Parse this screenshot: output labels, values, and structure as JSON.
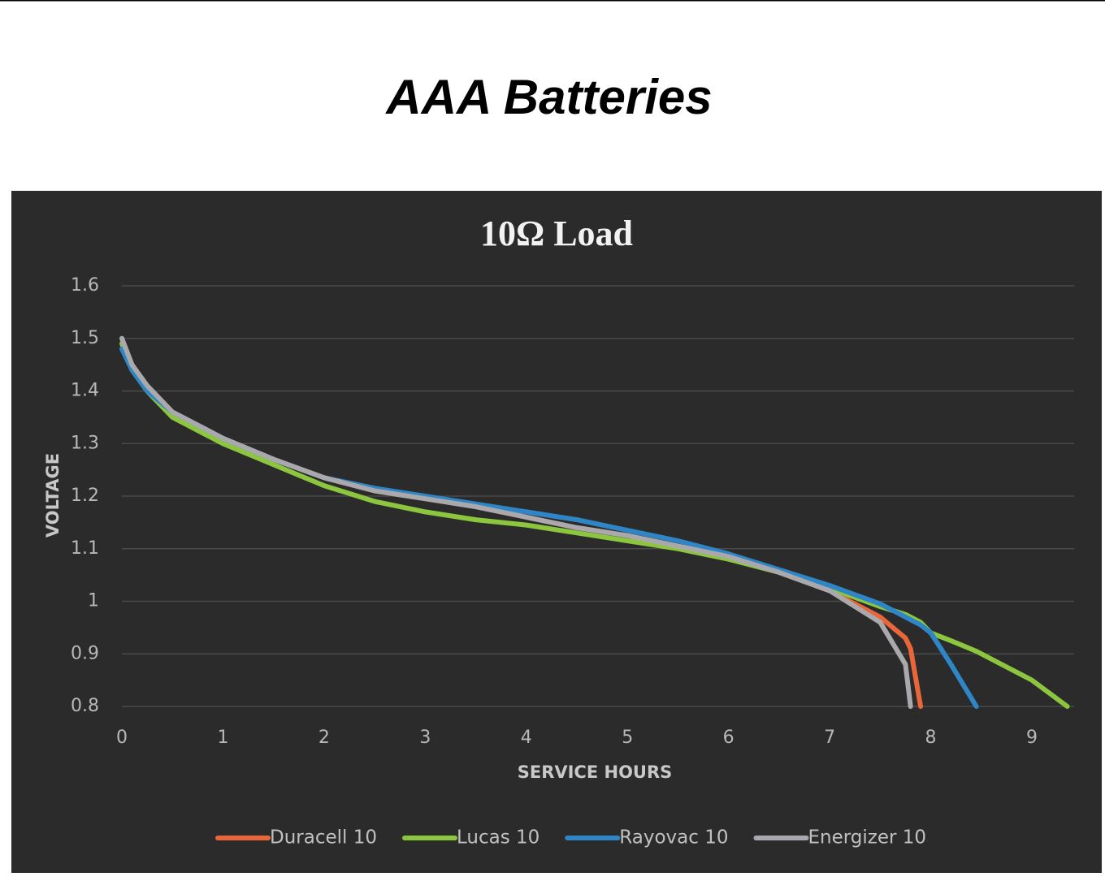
{
  "slide_title": "AAA Batteries",
  "chart_data": {
    "type": "line",
    "title": "10Ω Load",
    "x_label": "SERVICE HOURS",
    "y_label": "VOLTAGE",
    "x": [
      0,
      0.1,
      0.25,
      0.5,
      1,
      1.5,
      2,
      2.5,
      3,
      3.5,
      4,
      4.5,
      5,
      5.5,
      6,
      6.5,
      7,
      7.5,
      7.75,
      7.8,
      7.9,
      8,
      8.2,
      8.45,
      9,
      9.35
    ],
    "series": [
      {
        "name": "Duracell 10",
        "color": "#e8663a",
        "values": [
          1.5,
          1.45,
          1.41,
          1.36,
          1.31,
          1.27,
          1.235,
          1.21,
          1.195,
          1.18,
          1.16,
          1.14,
          1.125,
          1.105,
          1.085,
          1.055,
          1.02,
          0.97,
          0.93,
          0.91,
          0.8,
          null,
          null,
          null,
          null,
          null
        ]
      },
      {
        "name": "Lucas 10",
        "color": "#8cc63e",
        "values": [
          1.49,
          1.44,
          1.4,
          1.35,
          1.3,
          1.26,
          1.22,
          1.19,
          1.17,
          1.155,
          1.145,
          1.13,
          1.115,
          1.1,
          1.08,
          1.055,
          1.025,
          0.99,
          0.975,
          0.97,
          0.96,
          0.94,
          0.925,
          0.905,
          0.85,
          0.8
        ]
      },
      {
        "name": "Rayovac 10",
        "color": "#2f86c6",
        "values": [
          1.48,
          1.44,
          1.4,
          1.36,
          1.31,
          1.27,
          1.235,
          1.215,
          1.2,
          1.185,
          1.17,
          1.155,
          1.135,
          1.115,
          1.09,
          1.06,
          1.03,
          0.995,
          0.97,
          0.965,
          0.955,
          0.94,
          0.88,
          0.8,
          null,
          null
        ]
      },
      {
        "name": "Energizer 10",
        "color": "#a9a9ad",
        "values": [
          1.5,
          1.45,
          1.41,
          1.36,
          1.31,
          1.27,
          1.235,
          1.21,
          1.195,
          1.18,
          1.16,
          1.14,
          1.125,
          1.105,
          1.085,
          1.055,
          1.02,
          0.96,
          0.88,
          0.8,
          null,
          null,
          null,
          null,
          null,
          null
        ]
      }
    ],
    "xlim": [
      0,
      9.4
    ],
    "xticks": [
      0,
      1,
      2,
      3,
      4,
      5,
      6,
      7,
      8,
      9
    ],
    "ylim": [
      0.8,
      1.6
    ],
    "yticks": [
      0.8,
      0.9,
      1,
      1.1,
      1.2,
      1.3,
      1.4,
      1.5,
      1.6
    ],
    "grid": true,
    "legend": "bottom"
  }
}
